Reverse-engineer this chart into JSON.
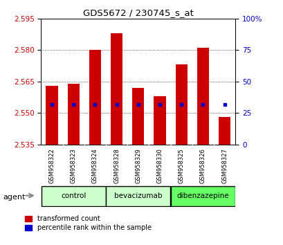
{
  "title": "GDS5672 / 230745_s_at",
  "samples": [
    "GSM958322",
    "GSM958323",
    "GSM958324",
    "GSM958328",
    "GSM958329",
    "GSM958330",
    "GSM958325",
    "GSM958326",
    "GSM958327"
  ],
  "red_values": [
    2.563,
    2.564,
    2.58,
    2.588,
    2.562,
    2.558,
    2.573,
    2.581,
    2.548
  ],
  "blue_percentiles": [
    31.5,
    31.5,
    31.5,
    31.5,
    31.5,
    32.0,
    31.5,
    31.5,
    32.0
  ],
  "y_min": 2.535,
  "y_max": 2.595,
  "y_ticks_red": [
    2.535,
    2.55,
    2.565,
    2.58,
    2.595
  ],
  "y_ticks_blue": [
    0,
    25,
    50,
    75,
    100
  ],
  "groups": [
    {
      "label": "control",
      "start": 0,
      "end": 2,
      "color": "#ccffcc"
    },
    {
      "label": "bevacizumab",
      "start": 3,
      "end": 5,
      "color": "#ccffcc"
    },
    {
      "label": "dibenzazepine",
      "start": 6,
      "end": 8,
      "color": "#66ff66"
    }
  ],
  "red_color": "#cc0000",
  "blue_color": "#0000cc",
  "bar_width": 0.55,
  "agent_label": "agent",
  "legend_red": "transformed count",
  "legend_blue": "percentile rank within the sample",
  "background_color": "#ffffff",
  "tick_label_color_red": "#cc0000",
  "tick_label_color_blue": "#0000cc",
  "x_label_area_color": "#cccccc"
}
